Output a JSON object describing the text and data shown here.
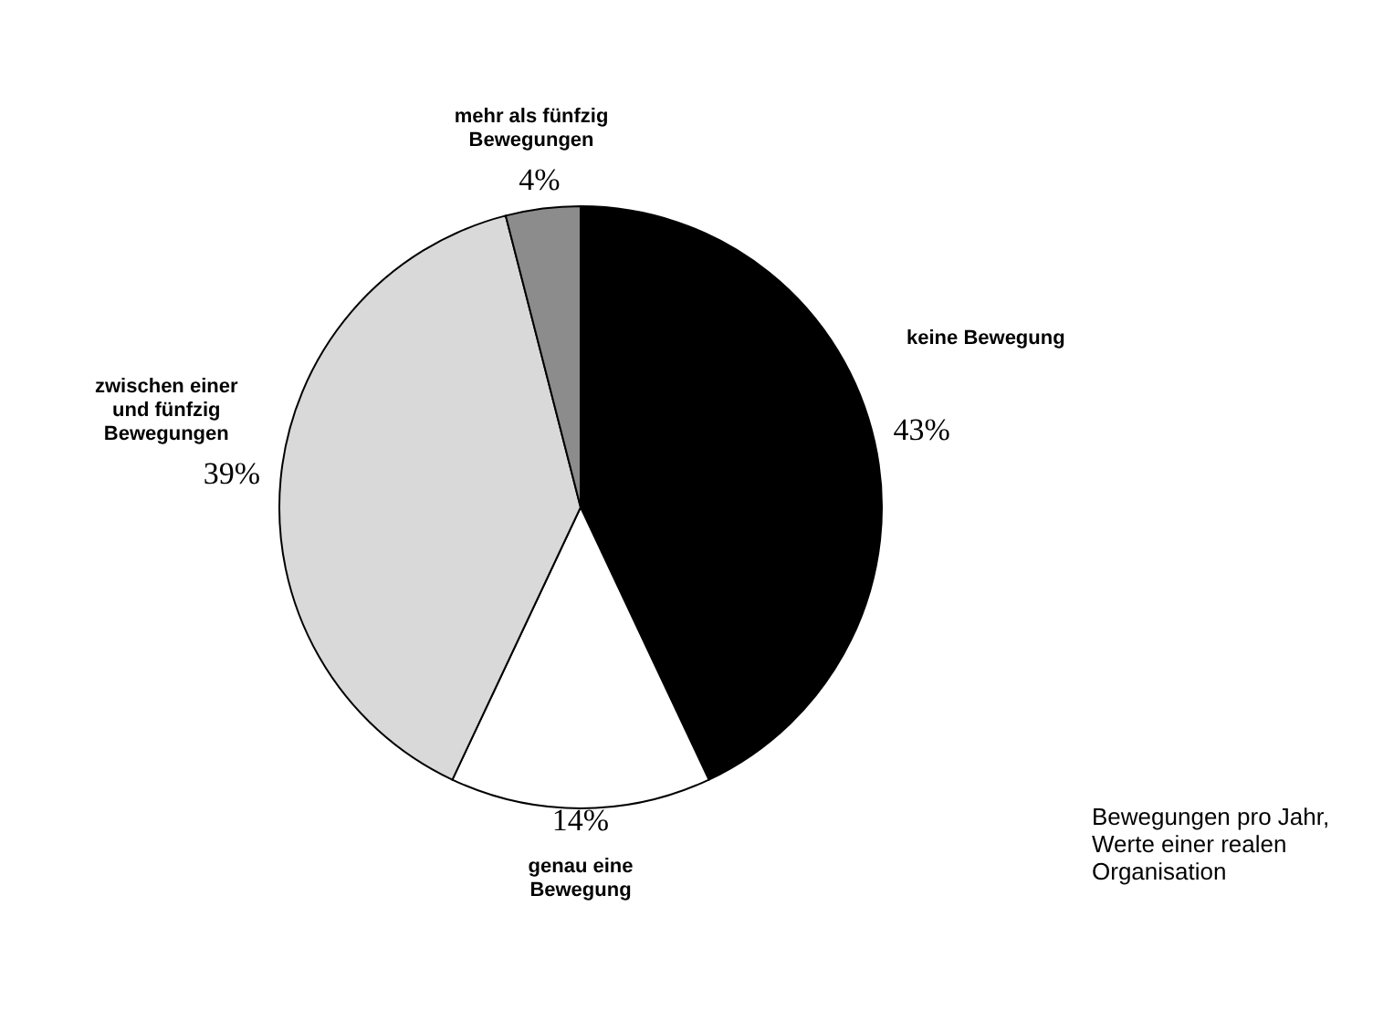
{
  "chart_data": {
    "type": "pie",
    "categories": [
      "keine Bewegung",
      "genau eine Bewegung",
      "zwischen einer und fünfzig Bewegungen",
      "mehr als fünfzig Bewegungen"
    ],
    "values": [
      43,
      14,
      39,
      4
    ],
    "value_labels": [
      "43%",
      "14%",
      "39%",
      "4%"
    ],
    "colors": [
      "#000000",
      "#ffffff",
      "#d9d9d9",
      "#8c8c8c"
    ],
    "annotations": [
      "Bewegungen pro Jahr, Werte einer realen Organisation"
    ]
  }
}
